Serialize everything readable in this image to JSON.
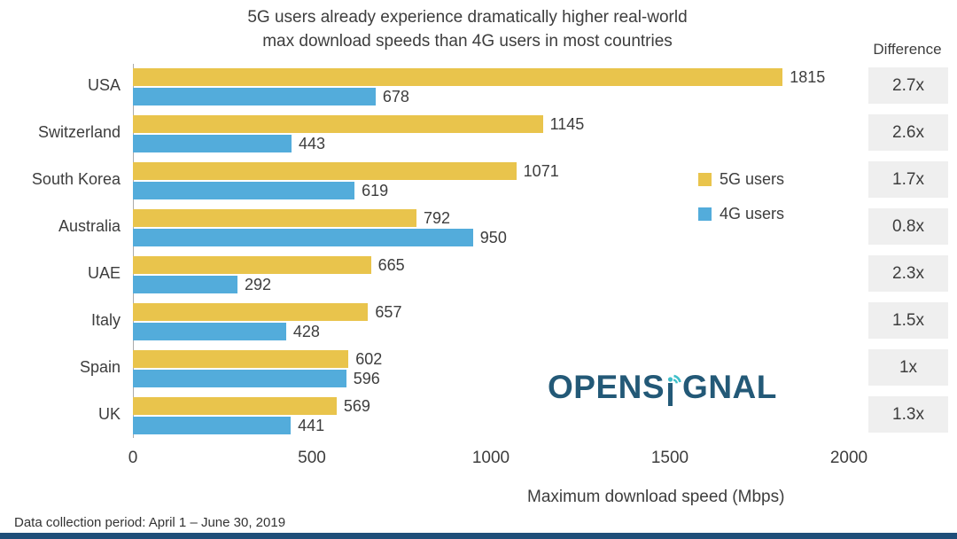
{
  "title": {
    "line1": "5G users already experience dramatically higher real-world",
    "line2": "max download speeds than 4G users in most countries"
  },
  "difference_header": "Difference",
  "legend": {
    "items": [
      {
        "label": "5G users",
        "color": "#E9C44C"
      },
      {
        "label": "4G users",
        "color": "#53ACDB"
      }
    ]
  },
  "axis": {
    "tick_labels": [
      "0",
      "500",
      "1000",
      "1500",
      "2000"
    ],
    "xlabel": "Maximum download speed  (Mbps)"
  },
  "logo": {
    "left": "OPENS",
    "right": "GNAL"
  },
  "footer": "Data collection period: April 1 – June 30, 2019",
  "colors": {
    "g5": "#E9C44C",
    "g4": "#53ACDB",
    "diff_bg": "#EFEFEF",
    "navy": "#235977",
    "teal": "#3FBFC9",
    "bottom_bar": "#1F4E79"
  },
  "chart_data": {
    "type": "bar",
    "orientation": "horizontal",
    "title": "5G users already experience dramatically higher real-world max download speeds than 4G users in most countries",
    "categories": [
      "USA",
      "Switzerland",
      "South Korea",
      "Australia",
      "UAE",
      "Italy",
      "Spain",
      "UK"
    ],
    "series": [
      {
        "name": "5G users",
        "values": [
          1815,
          1145,
          1071,
          792,
          665,
          657,
          602,
          569
        ]
      },
      {
        "name": "4G users",
        "values": [
          678,
          443,
          619,
          950,
          292,
          428,
          596,
          441
        ]
      }
    ],
    "differences": [
      "2.7x",
      "2.6x",
      "1.7x",
      "0.8x",
      "2.3x",
      "1.5x",
      "1x",
      "1.3x"
    ],
    "xlim": [
      0,
      2000
    ],
    "xticks": [
      0,
      500,
      1000,
      1500,
      2000
    ],
    "xlabel": "Maximum download speed  (Mbps)",
    "legend_position": "right-middle",
    "grid": false
  }
}
